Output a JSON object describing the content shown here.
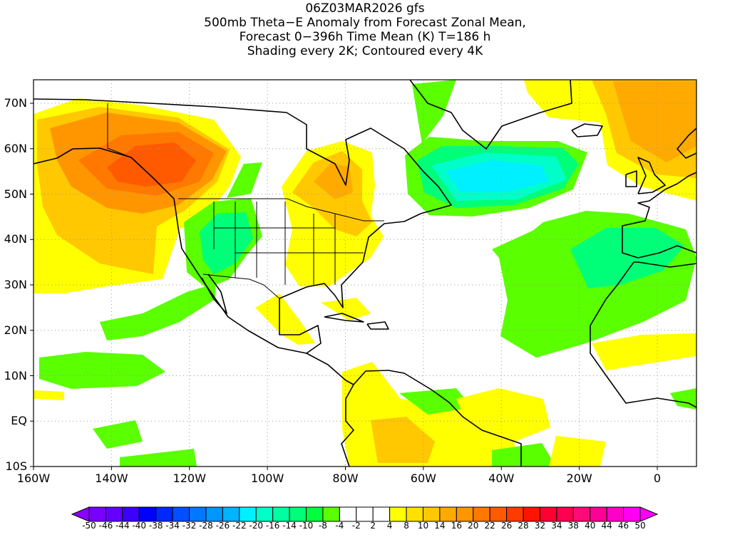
{
  "title": {
    "line1": "06Z03MAR2026 gfs",
    "line2": "500mb Theta−E Anomaly from Forecast Zonal Mean,",
    "line3": "Forecast 0−396h Time Mean (K) T=186 h",
    "line4": "Shading every 2K; Contoured every 4K"
  },
  "axes": {
    "lat_labels": [
      "70N",
      "60N",
      "50N",
      "40N",
      "30N",
      "20N",
      "10N",
      "EQ",
      "10S"
    ],
    "lon_labels": [
      "160W",
      "140W",
      "120W",
      "100W",
      "80W",
      "60W",
      "40W",
      "20W",
      "0"
    ]
  },
  "colorbar": {
    "labels": [
      "-50",
      "-46",
      "-44",
      "-40",
      "-38",
      "-34",
      "-32",
      "-28",
      "-26",
      "-22",
      "-20",
      "-16",
      "-14",
      "-10",
      "-8",
      "-4",
      "-2",
      "2",
      "4",
      "8",
      "10",
      "14",
      "16",
      "20",
      "22",
      "26",
      "28",
      "32",
      "34",
      "38",
      "40",
      "44",
      "46",
      "50"
    ],
    "under_color": "#8c00ff",
    "over_color": "#ff00ff",
    "colors": [
      "#7800ff",
      "#6400ff",
      "#3c00ff",
      "#0000ff",
      "#0028ff",
      "#0050ff",
      "#0078ff",
      "#0096ff",
      "#00b4ff",
      "#00f0ff",
      "#00ffc8",
      "#00ffa0",
      "#00ff78",
      "#00ff3c",
      "#5aff00",
      "#ffffff",
      "#ffffff",
      "#ffffff",
      "#ffff00",
      "#ffe100",
      "#ffc800",
      "#ffaa00",
      "#ff9600",
      "#ff7800",
      "#ff5a00",
      "#ff3c00",
      "#ff1400",
      "#ff0032",
      "#ff0050",
      "#ff0a78",
      "#ff0096",
      "#ff00c8",
      "#ff00f0"
    ]
  },
  "colors": {
    "lime": "#5aff00",
    "green": "#00ff78",
    "green2": "#00ffa0",
    "aqua": "#00ffc8",
    "cyan": "#00f0ff",
    "yellow": "#ffff00",
    "yellow2": "#ffe100",
    "gold": "#ffc800",
    "orange": "#ffaa00",
    "orange2": "#ff9600",
    "orange3": "#ff7800",
    "red_orange": "#ff5a00"
  }
}
